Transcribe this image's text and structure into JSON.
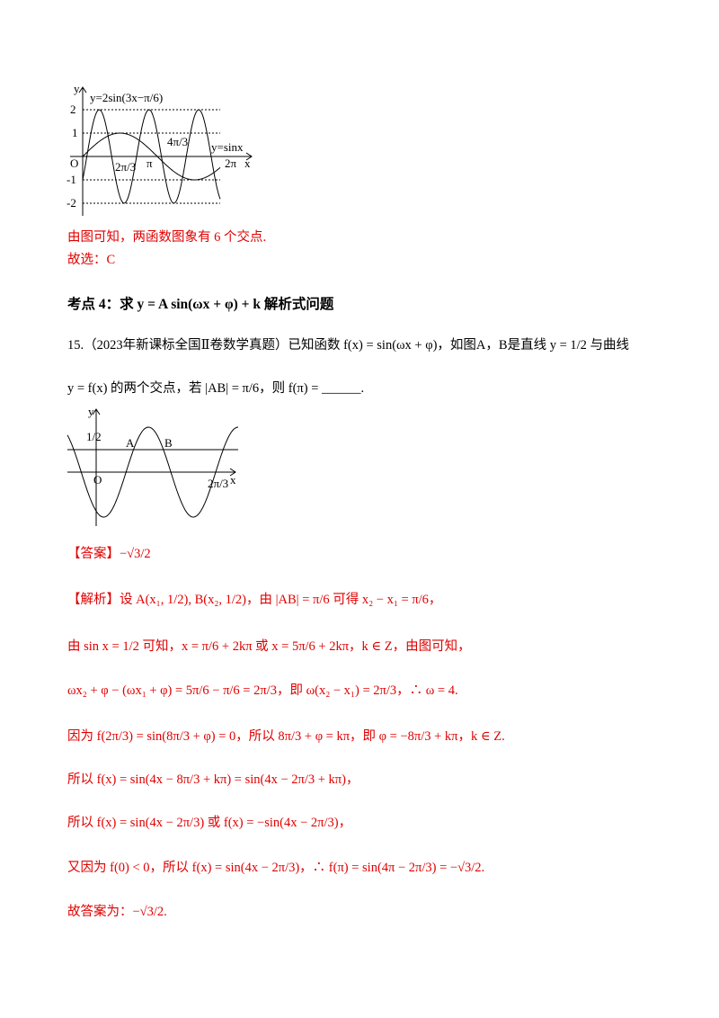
{
  "figure1": {
    "labels": [
      "y",
      "y=2sin(3x−π/6)",
      "2",
      "1",
      "O",
      "-1",
      "-2",
      "2π/3",
      "π",
      "4π/3",
      "y=sinx",
      "2π",
      "x"
    ]
  },
  "conclusion": "由图可知，两函数图象有 6 个交点.",
  "choice": "故选：C",
  "section": "考点 4：求 y = A sin(ωx + φ) + k 解析式问题",
  "problem": {
    "line1": "15.（2023年新课标全国Ⅱ卷数学真题）已知函数 f(x) = sin(ωx + φ)，如图A，B是直线 y = 1/2 与曲线",
    "line2": "y = f(x) 的两个交点，若 |AB| = π/6，则 f(π) = ______."
  },
  "figure2": {
    "labels": [
      "y",
      "1/2",
      "A",
      "B",
      "O",
      "2π/3",
      "x"
    ]
  },
  "answer": "【答案】−√3/2",
  "solution": [
    "【解析】设 A(x₁, 1/2), B(x₂, 1/2)，由 |AB| = π/6 可得 x₂ − x₁ = π/6，",
    "由 sin x = 1/2 可知，x = π/6 + 2kπ 或 x = 5π/6 + 2kπ，k ∈ Z，由图可知，",
    "ωx₂ + φ − (ωx₁ + φ) = 5π/6 − π/6 = 2π/3，即 ω(x₂ − x₁) = 2π/3，∴ ω = 4.",
    "因为 f(2π/3) = sin(8π/3 + φ) = 0，所以 8π/3 + φ = kπ，即 φ = −8π/3 + kπ，k ∈ Z.",
    "所以 f(x) = sin(4x − 8π/3 + kπ) = sin(4x − 2π/3 + kπ)，",
    "所以 f(x) = sin(4x − 2π/3) 或 f(x) = −sin(4x − 2π/3)，",
    "又因为 f(0) < 0，所以 f(x) = sin(4x − 2π/3)，∴ f(π) = sin(4π − 2π/3) = −√3/2.",
    "故答案为：−√3/2."
  ]
}
